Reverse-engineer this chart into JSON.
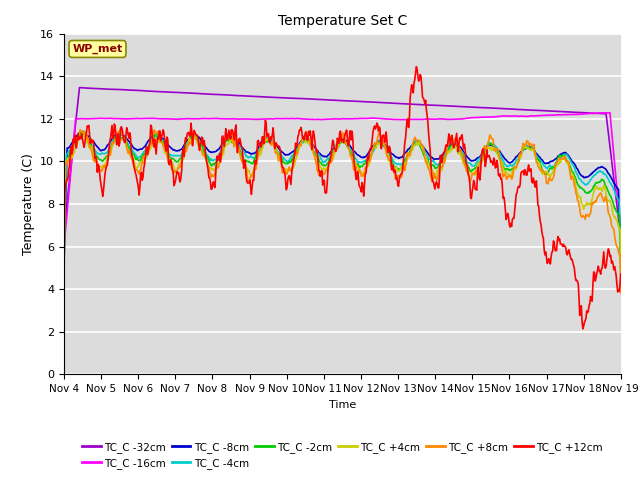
{
  "title": "Temperature Set C",
  "xlabel": "Time",
  "ylabel": "Temperature (C)",
  "ylim": [
    0,
    16
  ],
  "yticks": [
    0,
    2,
    4,
    6,
    8,
    10,
    12,
    14,
    16
  ],
  "xtick_labels": [
    "Nov 4",
    "Nov 5",
    "Nov 6",
    "Nov 7",
    "Nov 8",
    "Nov 9",
    "Nov 10",
    "Nov 11",
    "Nov 12",
    "Nov 13",
    "Nov 14",
    "Nov 15",
    "Nov 16",
    "Nov 17",
    "Nov 18",
    "Nov 19"
  ],
  "wp_met_label": "WP_met",
  "wp_met_color": "#8B0000",
  "wp_met_bg": "#FFFFA0",
  "background_color": "#DCDCDC",
  "figsize": [
    6.4,
    4.8
  ],
  "dpi": 100,
  "series": [
    {
      "label": "TC_C -32cm",
      "color": "#9900CC"
    },
    {
      "label": "TC_C -16cm",
      "color": "#FF00FF"
    },
    {
      "label": "TC_C -8cm",
      "color": "#0000CC"
    },
    {
      "label": "TC_C -4cm",
      "color": "#00CCCC"
    },
    {
      "label": "TC_C -2cm",
      "color": "#00CC00"
    },
    {
      "label": "TC_C +4cm",
      "color": "#CCCC00"
    },
    {
      "label": "TC_C +8cm",
      "color": "#FF8800"
    },
    {
      "label": "TC_C +12cm",
      "color": "#FF0000"
    }
  ]
}
